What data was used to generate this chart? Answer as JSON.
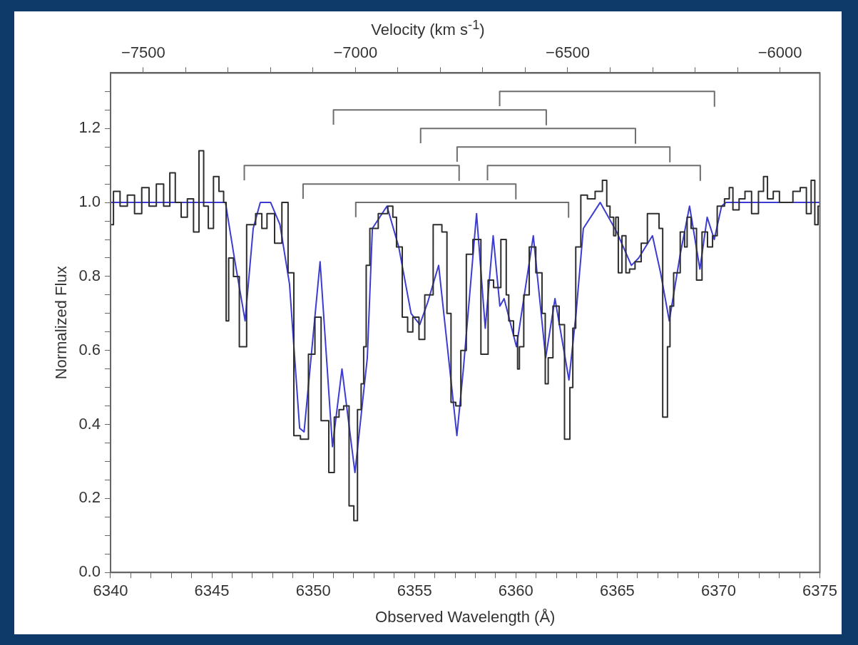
{
  "chart_data": {
    "type": "line",
    "xlabel": "Observed Wavelength (Å)",
    "ylabel": "Normalized Flux",
    "x2label": "Velocity (km s$^{-1}$)",
    "xlim": [
      6340,
      6375
    ],
    "xticks": [
      6340,
      {
        "value": 6341,
        "label": null
      },
      {
        "value": 6342,
        "label": null
      },
      {
        "value": 6343,
        "label": null
      },
      {
        "value": 6344,
        "label": null
      },
      6345,
      {
        "value": 6346,
        "label": null
      },
      {
        "value": 6347,
        "label": null
      },
      {
        "value": 6348,
        "label": null
      },
      {
        "value": 6349,
        "label": null
      },
      6350,
      {
        "value": 6351,
        "label": null
      },
      {
        "value": 6352,
        "label": null
      },
      {
        "value": 6353,
        "label": null
      },
      {
        "value": 6354,
        "label": null
      },
      6355,
      {
        "value": 6356,
        "label": null
      },
      {
        "value": 6357,
        "label": null
      },
      {
        "value": 6358,
        "label": null
      },
      {
        "value": 6359,
        "label": null
      },
      6360,
      {
        "value": 6361,
        "label": null
      },
      {
        "value": 6362,
        "label": null
      },
      {
        "value": 6363,
        "label": null
      },
      {
        "value": 6364,
        "label": null
      },
      6365,
      {
        "value": 6366,
        "label": null
      },
      {
        "value": 6367,
        "label": null
      },
      {
        "value": 6368,
        "label": null
      },
      {
        "value": 6369,
        "label": null
      },
      6370,
      {
        "value": 6371,
        "label": null
      },
      {
        "value": 6372,
        "label": null
      },
      {
        "value": 6373,
        "label": null
      },
      {
        "value": 6374,
        "label": null
      },
      6375
    ],
    "x2lim": [
      -7577,
      -5906
    ],
    "x2ticks": [
      {
        "value": -7500,
        "label": "−7500"
      },
      {
        "value": -7400,
        "label": null
      },
      {
        "value": -7300,
        "label": null
      },
      {
        "value": -7200,
        "label": null
      },
      {
        "value": -7100,
        "label": null
      },
      {
        "value": -7000,
        "label": "−7000"
      },
      {
        "value": -6900,
        "label": null
      },
      {
        "value": -6800,
        "label": null
      },
      {
        "value": -6700,
        "label": null
      },
      {
        "value": -6600,
        "label": null
      },
      {
        "value": -6500,
        "label": "−6500"
      },
      {
        "value": -6400,
        "label": null
      },
      {
        "value": -6300,
        "label": null
      },
      {
        "value": -6200,
        "label": null
      },
      {
        "value": -6100,
        "label": null
      },
      {
        "value": -6000,
        "label": "−6000"
      }
    ],
    "ylim": [
      0,
      1.35
    ],
    "yticks": [
      {
        "value": 0,
        "label": "0.0"
      },
      {
        "value": 0.05,
        "label": null
      },
      {
        "value": 0.1,
        "label": null
      },
      {
        "value": 0.15,
        "label": null
      },
      {
        "value": 0.2,
        "label": "0.2"
      },
      {
        "value": 0.25,
        "label": null
      },
      {
        "value": 0.3,
        "label": null
      },
      {
        "value": 0.35,
        "label": null
      },
      {
        "value": 0.4,
        "label": "0.4"
      },
      {
        "value": 0.45,
        "label": null
      },
      {
        "value": 0.5,
        "label": null
      },
      {
        "value": 0.55,
        "label": null
      },
      {
        "value": 0.6,
        "label": "0.6"
      },
      {
        "value": 0.65,
        "label": null
      },
      {
        "value": 0.7,
        "label": null
      },
      {
        "value": 0.75,
        "label": null
      },
      {
        "value": 0.8,
        "label": "0.8"
      },
      {
        "value": 0.85,
        "label": null
      },
      {
        "value": 0.9,
        "label": null
      },
      {
        "value": 0.95,
        "label": null
      },
      {
        "value": 1.0,
        "label": "1.0"
      },
      {
        "value": 1.05,
        "label": null
      },
      {
        "value": 1.1,
        "label": null
      },
      {
        "value": 1.15,
        "label": null
      },
      {
        "value": 1.2,
        "label": "1.2"
      },
      {
        "value": 1.25,
        "label": null
      },
      {
        "value": 1.3,
        "label": null
      }
    ],
    "marker": "none",
    "series": [
      {
        "type": "step",
        "color": "#2e2e2e",
        "x": [
          6340.0,
          6340.29,
          6340.65,
          6341.01,
          6341.36,
          6341.72,
          6342.08,
          6342.44,
          6342.8,
          6343.05,
          6343.34,
          6343.63,
          6343.95,
          6344.24,
          6344.49,
          6344.7,
          6344.95,
          6345.21,
          6345.49,
          6345.67,
          6345.74,
          6345.92,
          6346.21,
          6346.5,
          6346.93,
          6347.39,
          6347.54,
          6347.9,
          6348.29,
          6348.62,
          6348.9,
          6349.19,
          6349.55,
          6349.98,
          6350.19,
          6350.59,
          6350.95,
          6351.13,
          6351.42,
          6351.59,
          6351.95,
          6352.06,
          6352.31,
          6352.42,
          6352.56,
          6352.67,
          6352.92,
          6353.5,
          6353.86,
          6354.0,
          6354.22,
          6354.57,
          6354.75,
          6355.08,
          6355.36,
          6355.65,
          6356.19,
          6356.51,
          6356.69,
          6356.91,
          6357.16,
          6357.41,
          6357.7,
          6358.06,
          6358.49,
          6358.77,
          6359.03,
          6359.49,
          6359.56,
          6359.74,
          6360.03,
          6360.14,
          6360.21,
          6360.57,
          6360.75,
          6361.22,
          6361.36,
          6361.54,
          6361.65,
          6362.01,
          6362.26,
          6362.54,
          6362.79,
          6362.83,
          6363.08,
          6363.33,
          6363.73,
          6364.09,
          6364.45,
          6364.52,
          6364.77,
          6364.88,
          6364.98,
          6365.13,
          6365.34,
          6365.52,
          6365.7,
          6366.06,
          6366.31,
          6366.67,
          6367.03,
          6367.1,
          6367.39,
          6367.57,
          6367.64,
          6367.93,
          6368.29,
          6368.36,
          6368.54,
          6368.75,
          6369.08,
          6369.29,
          6369.62,
          6369.79,
          6370.08,
          6370.51,
          6370.55,
          6370.87,
          6371.16,
          6371.45,
          6371.81,
          6372.13,
          6372.31,
          6372.52,
          6372.88,
          6373.13,
          6373.49,
          6373.85,
          6374.21,
          6374.46,
          6374.68,
          6374.82,
          6375.0
        ],
        "values": [
          0.94,
          1.03,
          0.99,
          1.02,
          0.97,
          1.04,
          0.99,
          1.05,
          0.99,
          1.08,
          1.0,
          0.96,
          1.01,
          0.92,
          1.14,
          0.99,
          0.93,
          1.07,
          1.03,
          1.0,
          0.68,
          0.85,
          0.8,
          0.61,
          0.94,
          0.97,
          0.93,
          0.97,
          0.89,
          1.0,
          0.81,
          0.37,
          0.36,
          0.59,
          0.69,
          0.41,
          0.27,
          0.42,
          0.44,
          0.45,
          0.18,
          0.14,
          0.44,
          0.51,
          0.61,
          0.83,
          0.93,
          0.97,
          0.99,
          0.96,
          0.88,
          0.69,
          0.65,
          0.69,
          0.63,
          0.75,
          0.94,
          0.92,
          0.7,
          0.46,
          0.45,
          0.6,
          0.86,
          0.9,
          0.59,
          0.79,
          0.77,
          0.9,
          0.75,
          0.68,
          0.64,
          0.55,
          0.61,
          0.75,
          0.88,
          0.81,
          0.7,
          0.51,
          0.58,
          0.72,
          0.67,
          0.36,
          0.5,
          0.66,
          0.88,
          1.02,
          1.01,
          1.03,
          1.06,
          0.99,
          0.96,
          0.91,
          0.96,
          0.81,
          0.91,
          0.81,
          0.82,
          0.84,
          0.89,
          0.97,
          0.97,
          0.93,
          0.42,
          0.61,
          0.72,
          0.81,
          0.92,
          0.88,
          0.96,
          0.93,
          0.79,
          0.92,
          0.88,
          0.91,
          0.99,
          1.01,
          1.04,
          0.98,
          1.01,
          1.03,
          0.97,
          1.03,
          1.07,
          1.01,
          1.03,
          1.0,
          1.0,
          1.03,
          1.04,
          0.97,
          1.06,
          0.94,
          0.99
        ]
      },
      {
        "type": "line",
        "color": "#3c3cd2",
        "x": [
          6340.0,
          6345.67,
          6346.14,
          6346.64,
          6347.04,
          6347.39,
          6347.9,
          6348.36,
          6348.83,
          6349.33,
          6349.55,
          6350.34,
          6350.95,
          6351.42,
          6352.06,
          6352.67,
          6352.92,
          6353.64,
          6354.22,
          6354.83,
          6355.26,
          6355.65,
          6356.19,
          6357.09,
          6357.41,
          6358.06,
          6358.49,
          6358.88,
          6359.21,
          6359.42,
          6360.03,
          6360.86,
          6361.47,
          6361.93,
          6362.62,
          6362.97,
          6363.33,
          6364.16,
          6364.98,
          6365.7,
          6366.06,
          6366.74,
          6367.14,
          6367.57,
          6368.11,
          6368.57,
          6369.08,
          6369.44,
          6369.79,
          6370.15,
          6370.37,
          6375.0
        ],
        "values": [
          1.0,
          1.0,
          0.84,
          0.68,
          0.93,
          1.0,
          1.0,
          0.94,
          0.78,
          0.39,
          0.38,
          0.84,
          0.34,
          0.55,
          0.27,
          0.58,
          0.93,
          0.99,
          0.88,
          0.7,
          0.67,
          0.73,
          0.83,
          0.37,
          0.55,
          0.97,
          0.66,
          0.91,
          0.72,
          0.74,
          0.61,
          0.91,
          0.58,
          0.74,
          0.52,
          0.7,
          0.93,
          1.0,
          0.92,
          0.83,
          0.85,
          0.91,
          0.81,
          0.68,
          0.86,
          0.99,
          0.82,
          0.96,
          0.9,
          0.99,
          1.0,
          1.0
        ]
      },
      {
        "type": "line",
        "color": "#6e6e6e",
        "x": [
          6359.2,
          6359.2,
          6369.8,
          6369.8,
          null,
          6351.0,
          6351.0,
          6361.5,
          6361.5,
          null,
          6355.3,
          6355.3,
          6365.9,
          6365.9,
          null,
          6357.1,
          6357.1,
          6367.6,
          6367.6,
          null,
          6346.6,
          6346.6,
          6357.2,
          6357.2,
          null,
          6358.6,
          6358.6,
          6369.1,
          6369.1,
          null,
          6349.5,
          6349.5,
          6360.0,
          6360.0,
          null,
          6352.1,
          6352.1,
          6362.6,
          6362.6
        ],
        "values": [
          1.26,
          1.3,
          1.3,
          1.26,
          null,
          1.21,
          1.25,
          1.25,
          1.21,
          null,
          1.16,
          1.2,
          1.2,
          1.16,
          null,
          1.11,
          1.15,
          1.15,
          1.11,
          null,
          1.06,
          1.1,
          1.1,
          1.06,
          null,
          1.06,
          1.1,
          1.1,
          1.06,
          null,
          1.01,
          1.05,
          1.05,
          1.01,
          null,
          0.96,
          1.0,
          1.0,
          0.96
        ]
      }
    ]
  }
}
